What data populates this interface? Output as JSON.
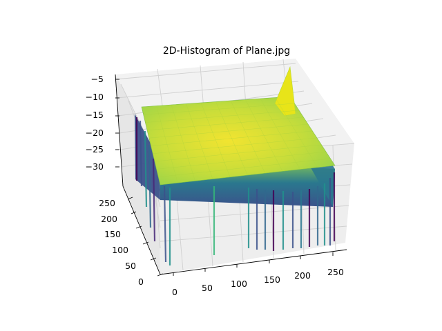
{
  "chart_data": {
    "type": "surface3d",
    "title": "2D-Histogram of Plane.jpg",
    "colormap": "viridis",
    "x_axis": {
      "label": "",
      "ticks": [
        "0",
        "50",
        "100",
        "150",
        "200",
        "250"
      ],
      "range": [
        0,
        255
      ]
    },
    "y_axis": {
      "label": "",
      "ticks": [
        "0",
        "50",
        "100",
        "150",
        "200",
        "250"
      ],
      "range": [
        0,
        255
      ]
    },
    "z_axis": {
      "label": "",
      "ticks": [
        "−30",
        "−25",
        "−20",
        "−15",
        "−10",
        "−5"
      ],
      "range": [
        -34,
        -5
      ]
    },
    "surface": {
      "description_values": {
        "plateau_level": -15,
        "peak_level": -6,
        "dropout_level": -34
      }
    },
    "grid": true
  }
}
